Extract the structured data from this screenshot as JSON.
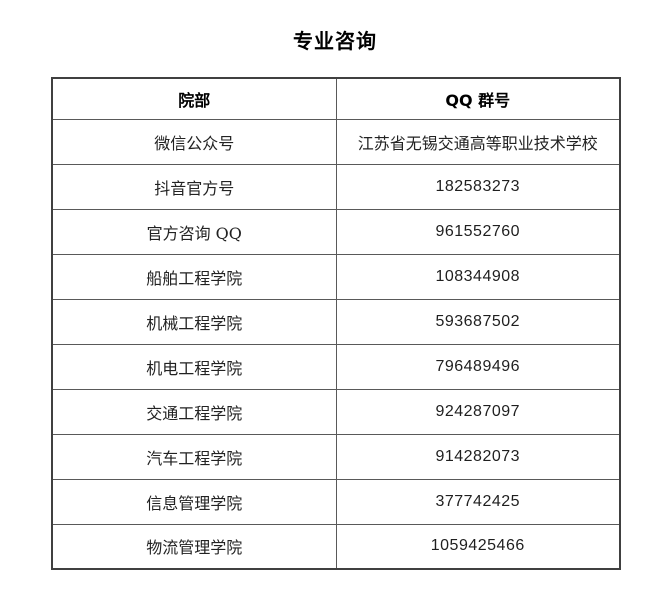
{
  "page": {
    "title": "专业咨询"
  },
  "table": {
    "columns": [
      "院部",
      "QQ 群号"
    ],
    "border_color_outer": "#404040",
    "border_color_inner": "#595959",
    "rows": [
      {
        "dept": "微信公众号",
        "qq": "江苏省无锡交通高等职业技术学校"
      },
      {
        "dept": "抖音官方号",
        "qq": "182583273"
      },
      {
        "dept": "官方咨询 QQ",
        "qq": "961552760"
      },
      {
        "dept": "船舶工程学院",
        "qq": "108344908"
      },
      {
        "dept": "机械工程学院",
        "qq": "593687502"
      },
      {
        "dept": "机电工程学院",
        "qq": "796489496"
      },
      {
        "dept": "交通工程学院",
        "qq": "924287097"
      },
      {
        "dept": "汽车工程学院",
        "qq": "914282073"
      },
      {
        "dept": "信息管理学院",
        "qq": "377742425"
      },
      {
        "dept": "物流管理学院",
        "qq": "1059425466"
      }
    ]
  }
}
